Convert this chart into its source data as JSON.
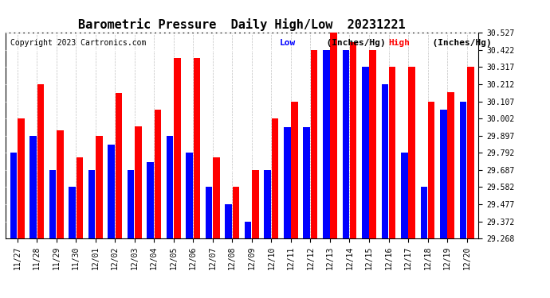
{
  "title": "Barometric Pressure  Daily High/Low  20231221",
  "copyright": "Copyright 2023 Cartronics.com",
  "legend_low": "Low",
  "legend_high": "High",
  "legend_unit": "(Inches/Hg)",
  "dates": [
    "11/27",
    "11/28",
    "11/29",
    "11/30",
    "12/01",
    "12/02",
    "12/03",
    "12/04",
    "12/05",
    "12/06",
    "12/07",
    "12/08",
    "12/09",
    "12/10",
    "12/11",
    "12/12",
    "12/13",
    "12/14",
    "12/15",
    "12/16",
    "12/17",
    "12/18",
    "12/19",
    "12/20"
  ],
  "high_values": [
    30.002,
    30.212,
    29.93,
    29.762,
    29.897,
    30.16,
    29.952,
    30.057,
    30.372,
    30.372,
    29.762,
    29.582,
    29.687,
    30.002,
    30.107,
    30.422,
    30.527,
    30.472,
    30.422,
    30.317,
    30.317,
    30.107,
    30.162,
    30.317
  ],
  "low_values": [
    29.792,
    29.897,
    29.687,
    29.582,
    29.687,
    29.842,
    29.687,
    29.737,
    29.897,
    29.792,
    29.582,
    29.477,
    29.372,
    29.687,
    29.95,
    29.95,
    30.422,
    30.422,
    30.317,
    30.212,
    29.792,
    29.582,
    30.057,
    30.107
  ],
  "ylim_min": 29.268,
  "ylim_max": 30.527,
  "yticks": [
    29.268,
    29.372,
    29.477,
    29.582,
    29.687,
    29.792,
    29.897,
    30.002,
    30.107,
    30.212,
    30.317,
    30.422,
    30.527
  ],
  "bg_color": "#ffffff",
  "bar_color_high": "#ff0000",
  "bar_color_low": "#0000ff",
  "grid_color": "#c0c0c0",
  "title_fontsize": 11,
  "copyright_fontsize": 7,
  "legend_fontsize": 8,
  "tick_fontsize": 7,
  "bar_width": 0.35
}
